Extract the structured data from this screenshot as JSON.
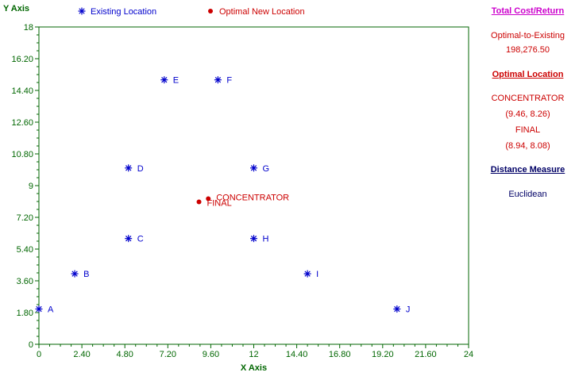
{
  "chart_data": {
    "type": "scatter",
    "title": "",
    "xlabel": "X Axis",
    "ylabel": "Y Axis",
    "xlim": [
      0,
      24
    ],
    "ylim": [
      0,
      18
    ],
    "x_ticks": [
      "0",
      "2.40",
      "4.80",
      "7.20",
      "9.60",
      "12",
      "14.40",
      "16.80",
      "19.20",
      "21.60",
      "24"
    ],
    "y_ticks": [
      "0",
      "1.80",
      "3.60",
      "5.40",
      "7.20",
      "9",
      "10.80",
      "12.60",
      "14.40",
      "16.20",
      "18"
    ],
    "legend": [
      {
        "name": "Existing Location",
        "marker": "asterisk",
        "color": "#0000cc"
      },
      {
        "name": "Optimal New Location",
        "marker": "dot",
        "color": "#cc0000"
      }
    ],
    "legend_position": "top",
    "series": [
      {
        "name": "Existing Location",
        "color": "#0000cc",
        "points": [
          {
            "label": "A",
            "x": 0,
            "y": 2
          },
          {
            "label": "B",
            "x": 2,
            "y": 4
          },
          {
            "label": "C",
            "x": 5,
            "y": 6
          },
          {
            "label": "D",
            "x": 5,
            "y": 10
          },
          {
            "label": "E",
            "x": 7,
            "y": 15
          },
          {
            "label": "F",
            "x": 10,
            "y": 15
          },
          {
            "label": "G",
            "x": 12,
            "y": 10
          },
          {
            "label": "H",
            "x": 12,
            "y": 6
          },
          {
            "label": "I",
            "x": 15,
            "y": 4
          },
          {
            "label": "J",
            "x": 20,
            "y": 2
          }
        ]
      },
      {
        "name": "Optimal New Location",
        "color": "#cc0000",
        "points": [
          {
            "label": "CONCENTRATOR",
            "x": 9.46,
            "y": 8.26
          },
          {
            "label": "FINAL",
            "x": 8.94,
            "y": 8.08
          }
        ]
      }
    ]
  },
  "side_panel": {
    "total_cost_header": "Total Cost/Return",
    "cost_label": "Optimal-to-Existing",
    "cost_value": "198,276.50",
    "optimal_location_header": "Optimal Location",
    "loc1_name": "CONCENTRATOR",
    "loc1_coords": "(9.46, 8.26)",
    "loc2_name": "FINAL",
    "loc2_coords": "(8.94, 8.08)",
    "distance_header": "Distance Measure",
    "distance_value": "Euclidean"
  },
  "colors": {
    "axis": "#006600",
    "existing": "#0000cc",
    "optimal": "#cc0000",
    "header_magenta": "#cc00cc",
    "header_red": "#cc0000",
    "header_navy": "#000066"
  }
}
